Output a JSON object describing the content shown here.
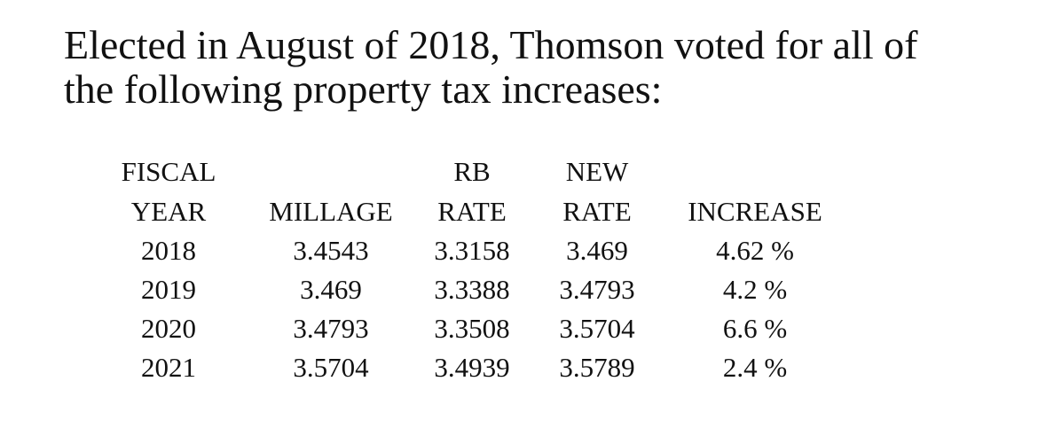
{
  "heading": {
    "line1": "Elected in August of 2018, Thomson voted for all of",
    "line2": "the following property tax increases:"
  },
  "table": {
    "header_top": [
      "FISCAL",
      "",
      "RB",
      "NEW",
      ""
    ],
    "header_bottom": [
      "YEAR",
      "MILLAGE",
      "RATE",
      "RATE",
      "INCREASE"
    ],
    "rows": [
      [
        "2018",
        "3.4543",
        "3.3158",
        "3.469",
        "4.62 %"
      ],
      [
        "2019",
        "3.469",
        "3.3388",
        "3.4793",
        "4.2 %"
      ],
      [
        "2020",
        "3.4793",
        "3.3508",
        "3.5704",
        "6.6 %"
      ],
      [
        "2021",
        "3.5704",
        "3.4939",
        "3.5789",
        "2.4 %"
      ]
    ]
  }
}
